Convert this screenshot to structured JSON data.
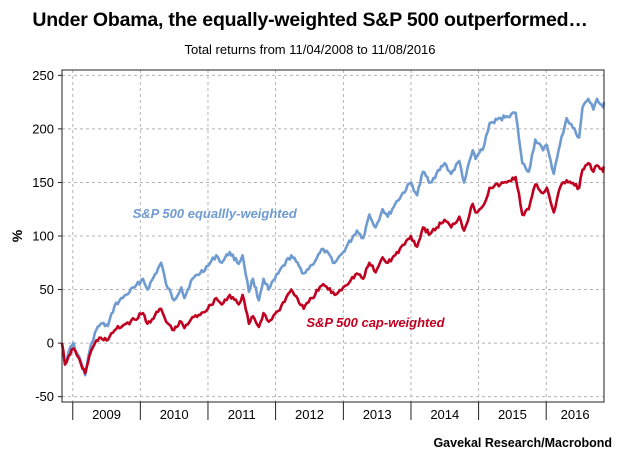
{
  "chart_data": {
    "type": "line",
    "title": "Under Obama, the equally-weighted S&P 500 outperformed…",
    "subtitle": "Total returns from 11/04/2008 to 11/08/2016",
    "ylabel": "%",
    "xlabel": "",
    "ylim": [
      -55,
      255
    ],
    "xlim": [
      "2008-11-04",
      "2016-11-08"
    ],
    "yticks": [
      -50,
      0,
      50,
      100,
      150,
      200,
      250
    ],
    "xtick_labels": [
      "2009",
      "2010",
      "2011",
      "2012",
      "2013",
      "2014",
      "2015",
      "2016"
    ],
    "grid": true,
    "source": "Gavekal Research/Macrobond",
    "series": [
      {
        "name": "S&P 500 equallly-weighted",
        "color": "#6f9bd1",
        "points": [
          [
            "2008-11-04",
            0
          ],
          [
            "2008-11-20",
            -20
          ],
          [
            "2008-12-10",
            -8
          ],
          [
            "2009-01-05",
            0
          ],
          [
            "2009-01-25",
            -10
          ],
          [
            "2009-02-15",
            -18
          ],
          [
            "2009-03-09",
            -30
          ],
          [
            "2009-04-01",
            -8
          ],
          [
            "2009-05-01",
            10
          ],
          [
            "2009-06-01",
            18
          ],
          [
            "2009-07-10",
            16
          ],
          [
            "2009-08-15",
            35
          ],
          [
            "2009-10-15",
            45
          ],
          [
            "2009-12-01",
            52
          ],
          [
            "2010-01-15",
            60
          ],
          [
            "2010-02-08",
            50
          ],
          [
            "2010-04-23",
            75
          ],
          [
            "2010-05-20",
            55
          ],
          [
            "2010-07-01",
            40
          ],
          [
            "2010-08-10",
            52
          ],
          [
            "2010-08-27",
            42
          ],
          [
            "2010-10-01",
            58
          ],
          [
            "2010-12-31",
            72
          ],
          [
            "2011-02-15",
            82
          ],
          [
            "2011-03-16",
            75
          ],
          [
            "2011-04-29",
            85
          ],
          [
            "2011-06-16",
            74
          ],
          [
            "2011-07-07",
            82
          ],
          [
            "2011-08-10",
            48
          ],
          [
            "2011-09-01",
            60
          ],
          [
            "2011-10-03",
            40
          ],
          [
            "2011-10-28",
            60
          ],
          [
            "2011-11-25",
            50
          ],
          [
            "2012-01-15",
            65
          ],
          [
            "2012-03-26",
            82
          ],
          [
            "2012-06-01",
            65
          ],
          [
            "2012-07-15",
            73
          ],
          [
            "2012-09-14",
            88
          ],
          [
            "2012-11-15",
            75
          ],
          [
            "2012-12-31",
            85
          ],
          [
            "2013-03-15",
            105
          ],
          [
            "2013-04-18",
            98
          ],
          [
            "2013-05-21",
            120
          ],
          [
            "2013-06-24",
            108
          ],
          [
            "2013-08-01",
            125
          ],
          [
            "2013-08-29",
            118
          ],
          [
            "2013-10-08",
            130
          ],
          [
            "2013-12-31",
            150
          ],
          [
            "2014-02-03",
            138
          ],
          [
            "2014-03-07",
            160
          ],
          [
            "2014-04-15",
            150
          ],
          [
            "2014-07-01",
            168
          ],
          [
            "2014-08-06",
            158
          ],
          [
            "2014-09-19",
            170
          ],
          [
            "2014-10-15",
            150
          ],
          [
            "2014-11-30",
            180
          ],
          [
            "2014-12-16",
            172
          ],
          [
            "2015-02-01",
            185
          ],
          [
            "2015-03-01",
            205
          ],
          [
            "2015-06-01",
            212
          ],
          [
            "2015-07-20",
            215
          ],
          [
            "2015-08-25",
            168
          ],
          [
            "2015-09-29",
            160
          ],
          [
            "2015-11-03",
            190
          ],
          [
            "2015-12-15",
            180
          ],
          [
            "2016-01-05",
            185
          ],
          [
            "2016-02-11",
            158
          ],
          [
            "2016-03-15",
            185
          ],
          [
            "2016-04-20",
            210
          ],
          [
            "2016-06-27",
            192
          ],
          [
            "2016-07-15",
            220
          ],
          [
            "2016-08-15",
            228
          ],
          [
            "2016-09-12",
            218
          ],
          [
            "2016-10-01",
            228
          ],
          [
            "2016-11-04",
            220
          ],
          [
            "2016-11-08",
            225
          ]
        ]
      },
      {
        "name": "S&P 500 cap-weighted",
        "color": "#c00020",
        "points": [
          [
            "2008-11-04",
            0
          ],
          [
            "2008-11-20",
            -20
          ],
          [
            "2008-12-10",
            -12
          ],
          [
            "2009-01-05",
            -5
          ],
          [
            "2009-01-25",
            -12
          ],
          [
            "2009-02-15",
            -20
          ],
          [
            "2009-03-09",
            -28
          ],
          [
            "2009-04-01",
            -12
          ],
          [
            "2009-05-01",
            0
          ],
          [
            "2009-06-01",
            5
          ],
          [
            "2009-07-10",
            3
          ],
          [
            "2009-08-15",
            12
          ],
          [
            "2009-10-15",
            18
          ],
          [
            "2009-12-01",
            22
          ],
          [
            "2010-01-15",
            28
          ],
          [
            "2010-02-08",
            18
          ],
          [
            "2010-04-23",
            32
          ],
          [
            "2010-05-20",
            20
          ],
          [
            "2010-07-01",
            12
          ],
          [
            "2010-08-10",
            20
          ],
          [
            "2010-08-27",
            14
          ],
          [
            "2010-10-01",
            22
          ],
          [
            "2010-12-31",
            32
          ],
          [
            "2011-02-15",
            42
          ],
          [
            "2011-03-16",
            36
          ],
          [
            "2011-04-29",
            45
          ],
          [
            "2011-06-16",
            36
          ],
          [
            "2011-07-07",
            45
          ],
          [
            "2011-08-10",
            18
          ],
          [
            "2011-09-01",
            25
          ],
          [
            "2011-10-03",
            15
          ],
          [
            "2011-10-28",
            28
          ],
          [
            "2011-11-25",
            20
          ],
          [
            "2012-01-15",
            30
          ],
          [
            "2012-03-26",
            50
          ],
          [
            "2012-06-01",
            32
          ],
          [
            "2012-07-15",
            42
          ],
          [
            "2012-09-14",
            55
          ],
          [
            "2012-11-15",
            45
          ],
          [
            "2012-12-31",
            52
          ],
          [
            "2013-03-15",
            65
          ],
          [
            "2013-04-18",
            60
          ],
          [
            "2013-05-21",
            75
          ],
          [
            "2013-06-24",
            66
          ],
          [
            "2013-08-01",
            80
          ],
          [
            "2013-08-29",
            75
          ],
          [
            "2013-10-08",
            82
          ],
          [
            "2013-12-31",
            100
          ],
          [
            "2014-02-03",
            90
          ],
          [
            "2014-03-07",
            108
          ],
          [
            "2014-04-15",
            102
          ],
          [
            "2014-07-01",
            115
          ],
          [
            "2014-08-06",
            108
          ],
          [
            "2014-09-19",
            118
          ],
          [
            "2014-10-15",
            105
          ],
          [
            "2014-11-30",
            130
          ],
          [
            "2014-12-16",
            122
          ],
          [
            "2015-02-01",
            130
          ],
          [
            "2015-03-01",
            145
          ],
          [
            "2015-06-01",
            150
          ],
          [
            "2015-07-20",
            155
          ],
          [
            "2015-08-25",
            120
          ],
          [
            "2015-09-29",
            125
          ],
          [
            "2015-11-03",
            148
          ],
          [
            "2015-12-15",
            140
          ],
          [
            "2016-01-05",
            145
          ],
          [
            "2016-02-11",
            122
          ],
          [
            "2016-03-15",
            145
          ],
          [
            "2016-04-20",
            152
          ],
          [
            "2016-06-27",
            145
          ],
          [
            "2016-07-15",
            162
          ],
          [
            "2016-08-15",
            168
          ],
          [
            "2016-09-12",
            160
          ],
          [
            "2016-10-01",
            166
          ],
          [
            "2016-11-04",
            160
          ],
          [
            "2016-11-08",
            165
          ]
        ]
      }
    ]
  }
}
